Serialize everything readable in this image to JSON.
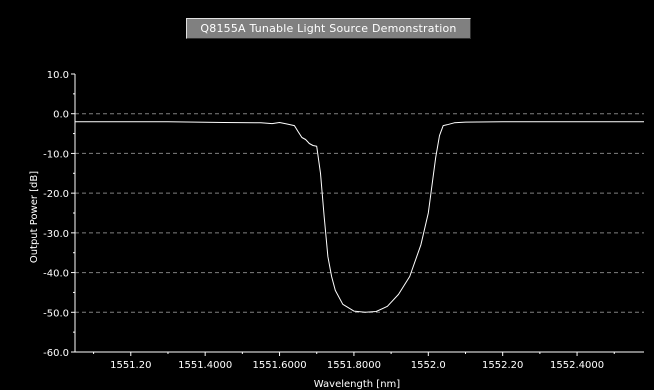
{
  "title": "Q8155A Tunable Light Source Demonstration",
  "colors": {
    "background": "#000000",
    "axes": "#ffffff",
    "grid": "#808080",
    "trace": "#ffffff",
    "title_box": "#808080"
  },
  "chart_data": {
    "type": "line",
    "title": "Q8155A Tunable Light Source Demonstration",
    "xlabel": "Wavelength [nm]",
    "ylabel": "Output Power [dB]",
    "xlim": [
      1551.05,
      1552.58
    ],
    "ylim": [
      -60,
      10
    ],
    "grid": true,
    "grid_axis": "y",
    "grid_style": "dashed",
    "legend": "none",
    "x_ticks": [
      {
        "value": 1551.2,
        "label": "1551.20"
      },
      {
        "value": 1551.4,
        "label": "1551.4000"
      },
      {
        "value": 1551.6,
        "label": "1551.6000"
      },
      {
        "value": 1551.8,
        "label": "1551.8000"
      },
      {
        "value": 1552.0,
        "label": "1552.0"
      },
      {
        "value": 1552.2,
        "label": "1552.20"
      },
      {
        "value": 1552.4,
        "label": "1552.4000"
      }
    ],
    "y_ticks": [
      {
        "value": 10,
        "label": "10.0"
      },
      {
        "value": 0,
        "label": "0.0"
      },
      {
        "value": -10,
        "label": "-10.0"
      },
      {
        "value": -20,
        "label": "-20.0"
      },
      {
        "value": -30,
        "label": "-30.0"
      },
      {
        "value": -40,
        "label": "-40.0"
      },
      {
        "value": -50,
        "label": "-50.0"
      },
      {
        "value": -60,
        "label": "-60.0"
      }
    ],
    "series": [
      {
        "color": "#ffffff",
        "x": [
          1551.05,
          1551.3,
          1551.45,
          1551.55,
          1551.58,
          1551.6,
          1551.62,
          1551.64,
          1551.65,
          1551.66,
          1551.67,
          1551.68,
          1551.69,
          1551.7,
          1551.71,
          1551.72,
          1551.73,
          1551.74,
          1551.75,
          1551.77,
          1551.8,
          1551.83,
          1551.86,
          1551.89,
          1551.92,
          1551.95,
          1551.98,
          1552.0,
          1552.01,
          1552.02,
          1552.03,
          1552.04,
          1552.05,
          1552.07,
          1552.1,
          1552.2,
          1552.58
        ],
        "y": [
          -2,
          -2,
          -2.2,
          -2.3,
          -2.5,
          -2.2,
          -2.6,
          -3,
          -4.5,
          -6,
          -6.5,
          -7.5,
          -8,
          -8.2,
          -15,
          -26,
          -36,
          -41,
          -44.5,
          -48,
          -49.7,
          -50,
          -49.8,
          -48.5,
          -45.5,
          -41,
          -33,
          -25,
          -18,
          -11,
          -5.5,
          -3,
          -2.8,
          -2.3,
          -2.1,
          -2,
          -2
        ]
      }
    ]
  }
}
